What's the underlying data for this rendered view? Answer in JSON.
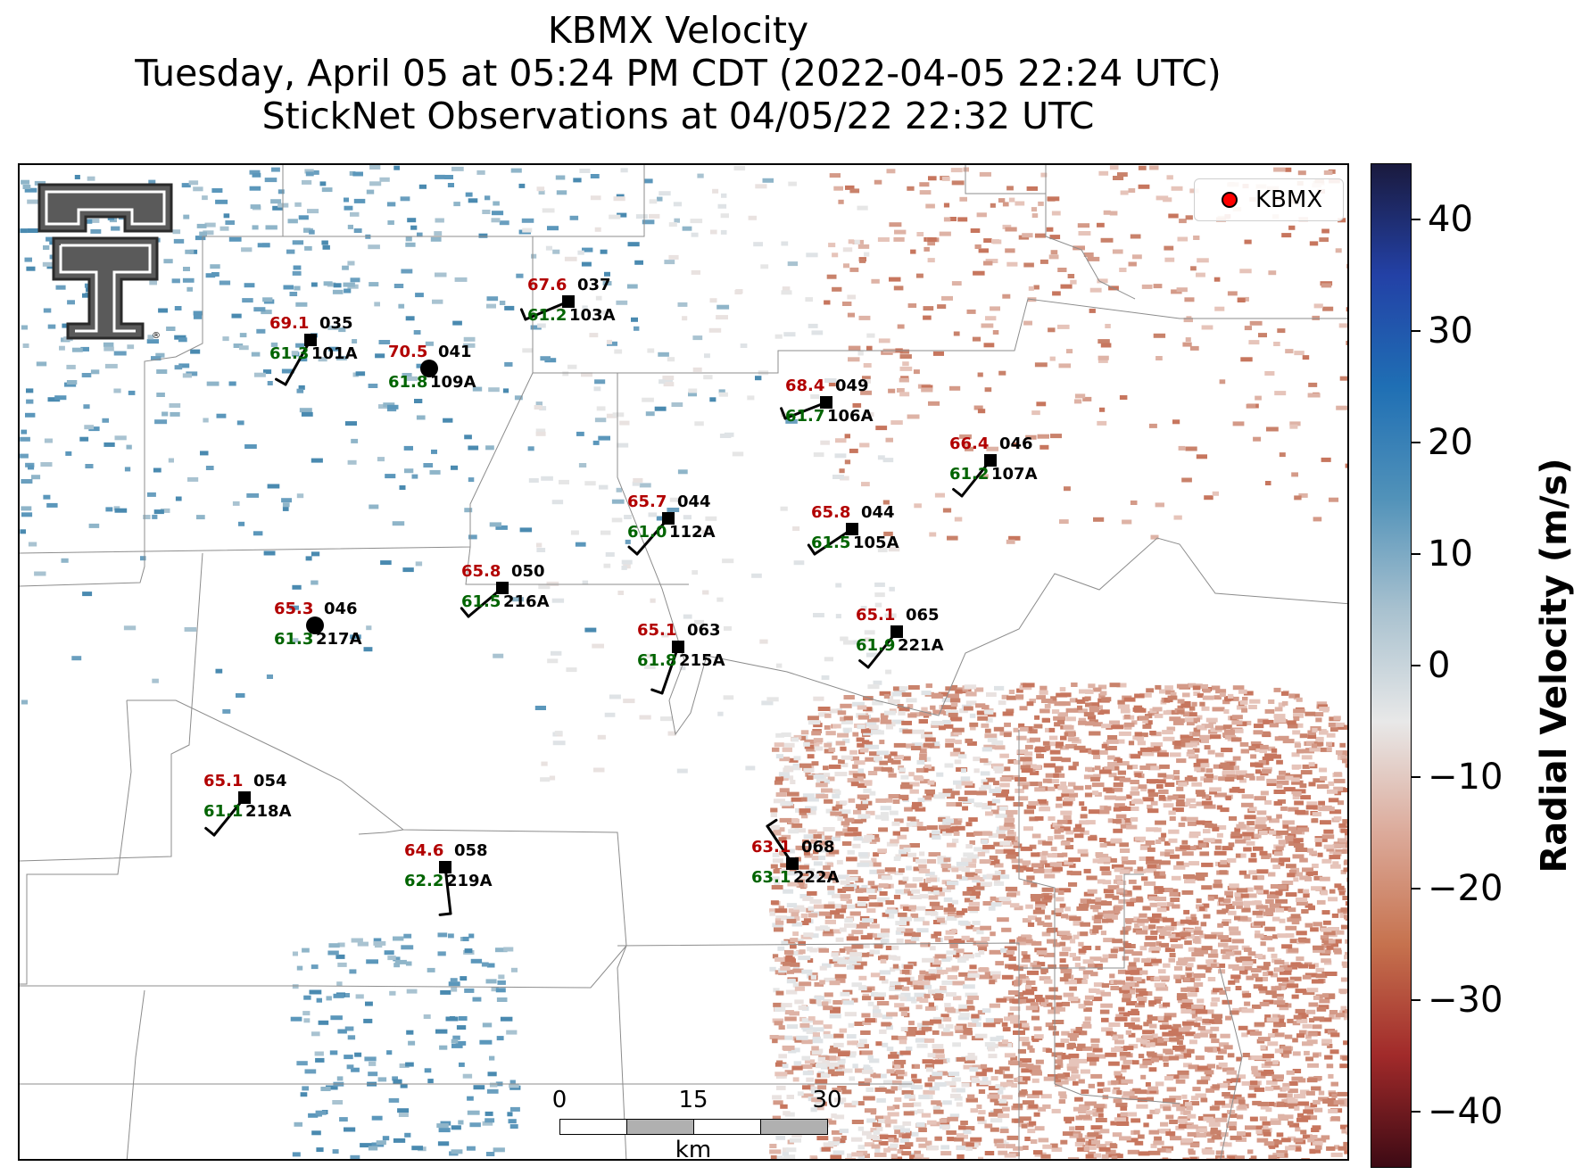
{
  "title": {
    "line1": "KBMX Velocity",
    "line2": "Tuesday, April 05 at 05:24 PM CDT (2022-04-05 22:24 UTC)",
    "line3": "StickNet Observations at 04/05/22 22:32 UTC"
  },
  "legend": {
    "label": "KBMX",
    "marker_color": "#ff0000"
  },
  "logo": {
    "icon": "texas-tech-double-t-logo",
    "text": "®"
  },
  "scalebar": {
    "ticks": [
      "0",
      "15",
      "30"
    ],
    "unit": "km"
  },
  "colorbar": {
    "label": "Radial Velocity (m/s)",
    "min": -45,
    "max": 45,
    "ticks": [
      "40",
      "30",
      "20",
      "10",
      "0",
      "−10",
      "−20",
      "−30",
      "−40"
    ],
    "tick_values": [
      40,
      30,
      20,
      10,
      0,
      -10,
      -20,
      -30,
      -40
    ],
    "colors": [
      "#1a1a3e",
      "#2341a6",
      "#1f6fb4",
      "#5192b9",
      "#a8c1cf",
      "#e8e8e8",
      "#dcaa9a",
      "#c6724e",
      "#a12a2a",
      "#3d0a14"
    ]
  },
  "stations": [
    {
      "id": "101A",
      "temp": "69.1",
      "dew": "61.3",
      "pres": "035",
      "marker": "square"
    },
    {
      "id": "109A",
      "temp": "70.5",
      "dew": "61.8",
      "pres": "041",
      "marker": "circle"
    },
    {
      "id": "103A",
      "temp": "67.6",
      "dew": "61.2",
      "pres": "037",
      "marker": "square"
    },
    {
      "id": "106A",
      "temp": "68.4",
      "dew": "61.7",
      "pres": "049",
      "marker": "square"
    },
    {
      "id": "107A",
      "temp": "66.4",
      "dew": "61.2",
      "pres": "046",
      "marker": "square"
    },
    {
      "id": "112A",
      "temp": "65.7",
      "dew": "61.0",
      "pres": "044",
      "marker": "square"
    },
    {
      "id": "105A",
      "temp": "65.8",
      "dew": "61.5",
      "pres": "044",
      "marker": "square"
    },
    {
      "id": "216A",
      "temp": "65.8",
      "dew": "61.5",
      "pres": "050",
      "marker": "square"
    },
    {
      "id": "217A",
      "temp": "65.3",
      "dew": "61.3",
      "pres": "046",
      "marker": "circle"
    },
    {
      "id": "215A",
      "temp": "65.1",
      "dew": "61.8",
      "pres": "063",
      "marker": "square"
    },
    {
      "id": "221A",
      "temp": "65.1",
      "dew": "61.9",
      "pres": "065",
      "marker": "square"
    },
    {
      "id": "218A",
      "temp": "65.1",
      "dew": "61.1",
      "pres": "054",
      "marker": "square"
    },
    {
      "id": "219A",
      "temp": "64.6",
      "dew": "62.2",
      "pres": "058",
      "marker": "square"
    },
    {
      "id": "222A",
      "temp": "63.1",
      "dew": "63.1",
      "pres": "068",
      "marker": "square"
    }
  ]
}
